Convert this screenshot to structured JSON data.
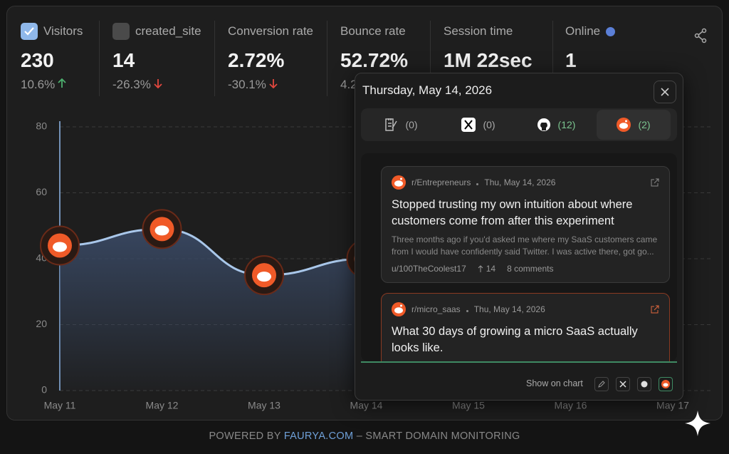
{
  "stats": [
    {
      "label": "Visitors",
      "value": "230",
      "change": "10.6%",
      "trend": "up",
      "checked": true
    },
    {
      "label": "created_site",
      "value": "14",
      "change": "-26.3%",
      "trend": "down",
      "checked": false
    },
    {
      "label": "Conversion rate",
      "value": "2.72%",
      "change": "-30.1%",
      "trend": "down"
    },
    {
      "label": "Bounce rate",
      "value": "52.72%",
      "change": "4.2"
    },
    {
      "label": "Session time",
      "value": "1M 22sec"
    },
    {
      "label": "Online",
      "value": "1"
    }
  ],
  "chart_data": {
    "type": "line",
    "categories": [
      "May 11",
      "May 12",
      "May 13",
      "May 14",
      "May 15",
      "May 16",
      "May 17"
    ],
    "series": [
      {
        "name": "Visitors",
        "color": "#a9c7ea",
        "values": [
          44,
          49,
          35,
          40,
          null,
          null,
          null
        ]
      }
    ],
    "ylim": [
      0,
      80
    ],
    "yticks": [
      0,
      20,
      40,
      60,
      80
    ],
    "grid": true
  },
  "popup": {
    "date": "Thursday, May 14, 2026",
    "tabs": [
      {
        "count": "(0)"
      },
      {
        "count": "(0)"
      },
      {
        "count": "(12)"
      },
      {
        "count": "(2)"
      }
    ],
    "posts": [
      {
        "subreddit": "r/Entrepreneurs",
        "date": "Thu, May 14, 2026",
        "title": "Stopped trusting my own intuition about where customers come from after this experiment",
        "excerpt": "Three months ago if you'd asked me where my SaaS customers came from I would have confidently said Twitter. I was active there, got go...",
        "author": "u/100TheCoolest17",
        "upvotes": "14",
        "comments": "8 comments"
      },
      {
        "subreddit": "r/micro_saas",
        "date": "Thu, May 14, 2026",
        "title": "What 30 days of growing a micro SaaS actually looks like."
      }
    ],
    "show_on_chart": "Show on chart"
  },
  "footer": {
    "prefix": "POWERED BY",
    "link": "FAURYA.COM",
    "suffix": "– SMART DOMAIN MONITORING"
  }
}
